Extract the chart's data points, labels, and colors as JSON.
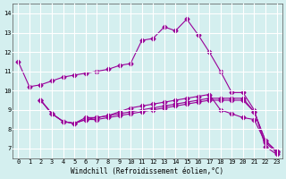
{
  "xlabel": "Windchill (Refroidissement éolien,°C)",
  "ylabel": "",
  "background_color": "#d4efef",
  "line_color": "#990099",
  "grid_color": "#ffffff",
  "x_ticks": [
    0,
    1,
    2,
    3,
    4,
    5,
    6,
    7,
    8,
    9,
    10,
    11,
    12,
    13,
    14,
    15,
    16,
    17,
    18,
    19,
    20,
    21,
    22,
    23
  ],
  "y_ticks": [
    7,
    8,
    9,
    10,
    11,
    12,
    13,
    14
  ],
  "ylim": [
    6.5,
    14.5
  ],
  "xlim": [
    -0.5,
    23.5
  ],
  "lines": [
    {
      "x": [
        0,
        1,
        2,
        3,
        4,
        5,
        6,
        7,
        8,
        9,
        10,
        11,
        12,
        13,
        14,
        15,
        16,
        17,
        18,
        19,
        20,
        21,
        22,
        23
      ],
      "y": [
        11.5,
        10.2,
        10.3,
        10.5,
        10.7,
        10.8,
        10.9,
        11.0,
        11.1,
        11.3,
        11.4,
        12.6,
        12.7,
        13.3,
        13.1,
        13.7,
        12.9,
        12.0,
        11.0,
        9.9,
        9.9,
        9.0,
        7.1,
        6.7
      ],
      "marker": "D",
      "markersize": 2.5
    },
    {
      "x": [
        2,
        3,
        4,
        5,
        6,
        7,
        8,
        9,
        10,
        11,
        12,
        13,
        14,
        15,
        16,
        17,
        18,
        19,
        20,
        21,
        22,
        23
      ],
      "y": [
        9.5,
        8.8,
        8.4,
        8.3,
        8.6,
        8.6,
        8.7,
        8.9,
        9.1,
        9.2,
        9.3,
        9.4,
        9.5,
        9.6,
        9.7,
        9.8,
        9.0,
        8.8,
        8.6,
        8.5,
        7.3,
        6.8
      ],
      "marker": "D",
      "markersize": 2.5
    },
    {
      "x": [
        2,
        3,
        4,
        5,
        6,
        7,
        8,
        9,
        10,
        11,
        12,
        13,
        14,
        15,
        16,
        17,
        18,
        19,
        20,
        21,
        22,
        23
      ],
      "y": [
        9.5,
        8.8,
        8.4,
        8.3,
        8.5,
        8.6,
        8.7,
        8.8,
        8.9,
        9.0,
        9.1,
        9.2,
        9.3,
        9.4,
        9.5,
        9.6,
        9.6,
        9.6,
        9.6,
        8.9,
        7.4,
        6.85
      ],
      "marker": "D",
      "markersize": 2.5
    },
    {
      "x": [
        2,
        3,
        4,
        5,
        6,
        7,
        8,
        9,
        10,
        11,
        12,
        13,
        14,
        15,
        16,
        17,
        18,
        19,
        20,
        21,
        22,
        23
      ],
      "y": [
        9.5,
        8.8,
        8.4,
        8.3,
        8.5,
        8.5,
        8.6,
        8.7,
        8.8,
        8.9,
        9.0,
        9.1,
        9.2,
        9.3,
        9.4,
        9.5,
        9.5,
        9.5,
        9.5,
        8.9,
        7.4,
        6.85
      ],
      "marker": "D",
      "markersize": 2.5
    }
  ]
}
